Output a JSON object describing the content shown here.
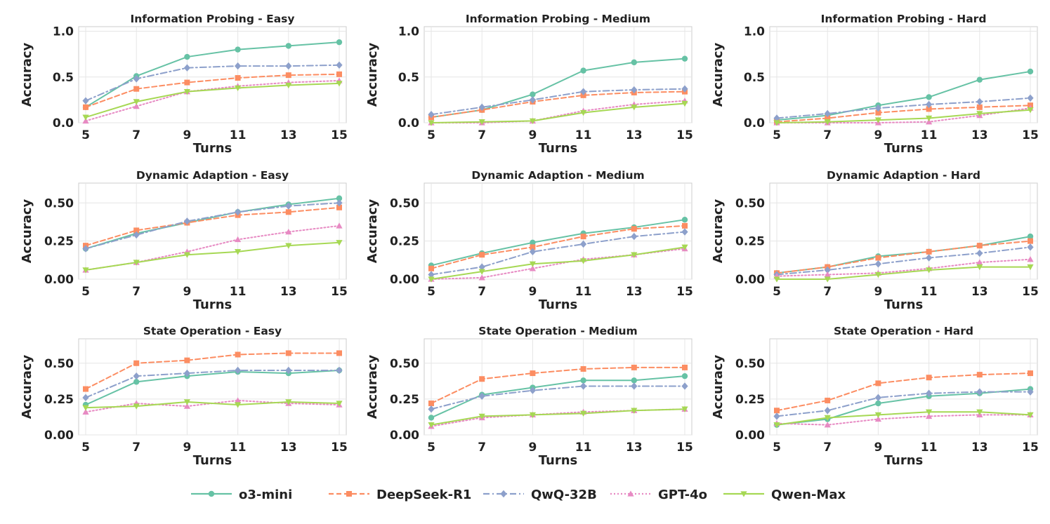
{
  "legend": {
    "items": [
      {
        "name": "o3-mini",
        "color": "#66c2a5",
        "dash": "solid",
        "marker": "circle"
      },
      {
        "name": "DeepSeek-R1",
        "color": "#fc8d62",
        "dash": "dashed",
        "marker": "square"
      },
      {
        "name": "QwQ-32B",
        "color": "#8da0cb",
        "dash": "dashdot",
        "marker": "diamond"
      },
      {
        "name": "GPT-4o",
        "color": "#e78ac3",
        "dash": "dotted",
        "marker": "triangle-up"
      },
      {
        "name": "Qwen-Max",
        "color": "#a6d854",
        "dash": "solid",
        "marker": "triangle-down"
      }
    ]
  },
  "chart_data": [
    {
      "type": "line",
      "title": "Information Probing - Easy",
      "xlabel": "Turns",
      "ylabel": "Accuracy",
      "x": [
        5,
        7,
        9,
        11,
        13,
        15
      ],
      "ylim": [
        0,
        1.05
      ],
      "yticks": [
        0.0,
        0.5,
        1.0
      ],
      "ytick_labels": [
        "0.0",
        "0.5",
        "1.0"
      ],
      "series": [
        {
          "name": "o3-mini",
          "values": [
            0.17,
            0.51,
            0.72,
            0.8,
            0.84,
            0.88
          ]
        },
        {
          "name": "DeepSeek-R1",
          "values": [
            0.17,
            0.37,
            0.44,
            0.49,
            0.52,
            0.53
          ]
        },
        {
          "name": "QwQ-32B",
          "values": [
            0.24,
            0.48,
            0.6,
            0.62,
            0.62,
            0.63
          ]
        },
        {
          "name": "GPT-4o",
          "values": [
            0.02,
            0.18,
            0.34,
            0.4,
            0.44,
            0.46
          ]
        },
        {
          "name": "Qwen-Max",
          "values": [
            0.06,
            0.23,
            0.34,
            0.38,
            0.41,
            0.43
          ]
        }
      ]
    },
    {
      "type": "line",
      "title": "Information Probing - Medium",
      "xlabel": "Turns",
      "ylabel": "Accuracy",
      "x": [
        5,
        7,
        9,
        11,
        13,
        15
      ],
      "ylim": [
        0,
        1.05
      ],
      "yticks": [
        0.0,
        0.5,
        1.0
      ],
      "ytick_labels": [
        "0.0",
        "0.5",
        "1.0"
      ],
      "series": [
        {
          "name": "o3-mini",
          "values": [
            0.06,
            0.14,
            0.31,
            0.57,
            0.66,
            0.7
          ]
        },
        {
          "name": "DeepSeek-R1",
          "values": [
            0.06,
            0.14,
            0.23,
            0.3,
            0.33,
            0.34
          ]
        },
        {
          "name": "QwQ-32B",
          "values": [
            0.09,
            0.17,
            0.25,
            0.34,
            0.36,
            0.37
          ]
        },
        {
          "name": "GPT-4o",
          "values": [
            0.0,
            0.0,
            0.02,
            0.13,
            0.2,
            0.24
          ]
        },
        {
          "name": "Qwen-Max",
          "values": [
            0.0,
            0.01,
            0.02,
            0.11,
            0.17,
            0.21
          ]
        }
      ]
    },
    {
      "type": "line",
      "title": "Information Probing - Hard",
      "xlabel": "Turns",
      "ylabel": "Accuracy",
      "x": [
        5,
        7,
        9,
        11,
        13,
        15
      ],
      "ylim": [
        0,
        1.05
      ],
      "yticks": [
        0.0,
        0.5,
        1.0
      ],
      "ytick_labels": [
        "0.0",
        "0.5",
        "1.0"
      ],
      "series": [
        {
          "name": "o3-mini",
          "values": [
            0.03,
            0.08,
            0.19,
            0.28,
            0.47,
            0.56
          ]
        },
        {
          "name": "DeepSeek-R1",
          "values": [
            0.01,
            0.05,
            0.11,
            0.15,
            0.17,
            0.19
          ]
        },
        {
          "name": "QwQ-32B",
          "values": [
            0.05,
            0.1,
            0.16,
            0.2,
            0.23,
            0.27
          ]
        },
        {
          "name": "GPT-4o",
          "values": [
            0.0,
            0.0,
            0.0,
            0.01,
            0.08,
            0.16
          ]
        },
        {
          "name": "Qwen-Max",
          "values": [
            0.0,
            0.01,
            0.03,
            0.05,
            0.1,
            0.14
          ]
        }
      ]
    },
    {
      "type": "line",
      "title": "Dynamic Adaption - Easy",
      "xlabel": "Turns",
      "ylabel": "Accuracy",
      "x": [
        5,
        7,
        9,
        11,
        13,
        15
      ],
      "ylim": [
        0,
        0.63
      ],
      "yticks": [
        0.0,
        0.25,
        0.5
      ],
      "ytick_labels": [
        "0.00",
        "0.25",
        "0.50"
      ],
      "series": [
        {
          "name": "o3-mini",
          "values": [
            0.2,
            0.3,
            0.37,
            0.44,
            0.49,
            0.53
          ]
        },
        {
          "name": "DeepSeek-R1",
          "values": [
            0.22,
            0.32,
            0.37,
            0.42,
            0.44,
            0.47
          ]
        },
        {
          "name": "QwQ-32B",
          "values": [
            0.2,
            0.29,
            0.38,
            0.44,
            0.48,
            0.5
          ]
        },
        {
          "name": "GPT-4o",
          "values": [
            0.06,
            0.11,
            0.18,
            0.26,
            0.31,
            0.35
          ]
        },
        {
          "name": "Qwen-Max",
          "values": [
            0.06,
            0.11,
            0.16,
            0.18,
            0.22,
            0.24
          ]
        }
      ]
    },
    {
      "type": "line",
      "title": "Dynamic Adaption - Medium",
      "xlabel": "Turns",
      "ylabel": "Accuracy",
      "x": [
        5,
        7,
        9,
        11,
        13,
        15
      ],
      "ylim": [
        0,
        0.63
      ],
      "yticks": [
        0.0,
        0.25,
        0.5
      ],
      "ytick_labels": [
        "0.00",
        "0.25",
        "0.50"
      ],
      "series": [
        {
          "name": "o3-mini",
          "values": [
            0.09,
            0.17,
            0.24,
            0.3,
            0.34,
            0.39
          ]
        },
        {
          "name": "DeepSeek-R1",
          "values": [
            0.07,
            0.16,
            0.21,
            0.28,
            0.33,
            0.35
          ]
        },
        {
          "name": "QwQ-32B",
          "values": [
            0.03,
            0.08,
            0.18,
            0.23,
            0.28,
            0.31
          ]
        },
        {
          "name": "GPT-4o",
          "values": [
            0.0,
            0.01,
            0.07,
            0.13,
            0.16,
            0.2
          ]
        },
        {
          "name": "Qwen-Max",
          "values": [
            0.0,
            0.05,
            0.1,
            0.12,
            0.16,
            0.21
          ]
        }
      ]
    },
    {
      "type": "line",
      "title": "Dynamic Adaption - Hard",
      "xlabel": "Turns",
      "ylabel": "Accuracy",
      "x": [
        5,
        7,
        9,
        11,
        13,
        15
      ],
      "ylim": [
        0,
        0.63
      ],
      "yticks": [
        0.0,
        0.25,
        0.5
      ],
      "ytick_labels": [
        "0.00",
        "0.25",
        "0.50"
      ],
      "series": [
        {
          "name": "o3-mini",
          "values": [
            0.04,
            0.08,
            0.15,
            0.18,
            0.22,
            0.28
          ]
        },
        {
          "name": "DeepSeek-R1",
          "values": [
            0.04,
            0.08,
            0.14,
            0.18,
            0.22,
            0.25
          ]
        },
        {
          "name": "QwQ-32B",
          "values": [
            0.03,
            0.06,
            0.1,
            0.14,
            0.17,
            0.21
          ]
        },
        {
          "name": "GPT-4o",
          "values": [
            0.02,
            0.03,
            0.04,
            0.07,
            0.11,
            0.13
          ]
        },
        {
          "name": "Qwen-Max",
          "values": [
            0.0,
            0.0,
            0.03,
            0.06,
            0.08,
            0.08
          ]
        }
      ]
    },
    {
      "type": "line",
      "title": "State Operation - Easy",
      "xlabel": "Turns",
      "ylabel": "Accuracy",
      "x": [
        5,
        7,
        9,
        11,
        13,
        15
      ],
      "ylim": [
        0,
        0.67
      ],
      "yticks": [
        0.0,
        0.25,
        0.5
      ],
      "ytick_labels": [
        "0.00",
        "0.25",
        "0.50"
      ],
      "series": [
        {
          "name": "o3-mini",
          "values": [
            0.21,
            0.37,
            0.41,
            0.44,
            0.43,
            0.45
          ]
        },
        {
          "name": "DeepSeek-R1",
          "values": [
            0.32,
            0.5,
            0.52,
            0.56,
            0.57,
            0.57
          ]
        },
        {
          "name": "QwQ-32B",
          "values": [
            0.26,
            0.41,
            0.43,
            0.45,
            0.45,
            0.45
          ]
        },
        {
          "name": "GPT-4o",
          "values": [
            0.16,
            0.22,
            0.2,
            0.24,
            0.22,
            0.21
          ]
        },
        {
          "name": "Qwen-Max",
          "values": [
            0.19,
            0.2,
            0.23,
            0.21,
            0.23,
            0.22
          ]
        }
      ]
    },
    {
      "type": "line",
      "title": "State Operation - Medium",
      "xlabel": "Turns",
      "ylabel": "Accuracy",
      "x": [
        5,
        7,
        9,
        11,
        13,
        15
      ],
      "ylim": [
        0,
        0.67
      ],
      "yticks": [
        0.0,
        0.25,
        0.5
      ],
      "ytick_labels": [
        "0.00",
        "0.25",
        "0.50"
      ],
      "series": [
        {
          "name": "o3-mini",
          "values": [
            0.12,
            0.28,
            0.33,
            0.38,
            0.38,
            0.41
          ]
        },
        {
          "name": "DeepSeek-R1",
          "values": [
            0.22,
            0.39,
            0.43,
            0.46,
            0.47,
            0.47
          ]
        },
        {
          "name": "QwQ-32B",
          "values": [
            0.18,
            0.27,
            0.31,
            0.34,
            0.34,
            0.34
          ]
        },
        {
          "name": "GPT-4o",
          "values": [
            0.06,
            0.12,
            0.14,
            0.16,
            0.17,
            0.18
          ]
        },
        {
          "name": "Qwen-Max",
          "values": [
            0.07,
            0.13,
            0.14,
            0.15,
            0.17,
            0.18
          ]
        }
      ]
    },
    {
      "type": "line",
      "title": "State Operation - Hard",
      "xlabel": "Turns",
      "ylabel": "Accuracy",
      "x": [
        5,
        7,
        9,
        11,
        13,
        15
      ],
      "ylim": [
        0,
        0.67
      ],
      "yticks": [
        0.0,
        0.25,
        0.5
      ],
      "ytick_labels": [
        "0.00",
        "0.25",
        "0.50"
      ],
      "series": [
        {
          "name": "o3-mini",
          "values": [
            0.07,
            0.11,
            0.22,
            0.27,
            0.29,
            0.32
          ]
        },
        {
          "name": "DeepSeek-R1",
          "values": [
            0.17,
            0.24,
            0.36,
            0.4,
            0.42,
            0.43
          ]
        },
        {
          "name": "QwQ-32B",
          "values": [
            0.13,
            0.17,
            0.26,
            0.29,
            0.3,
            0.3
          ]
        },
        {
          "name": "GPT-4o",
          "values": [
            0.08,
            0.07,
            0.11,
            0.13,
            0.14,
            0.14
          ]
        },
        {
          "name": "Qwen-Max",
          "values": [
            0.07,
            0.12,
            0.14,
            0.16,
            0.16,
            0.14
          ]
        }
      ]
    }
  ]
}
